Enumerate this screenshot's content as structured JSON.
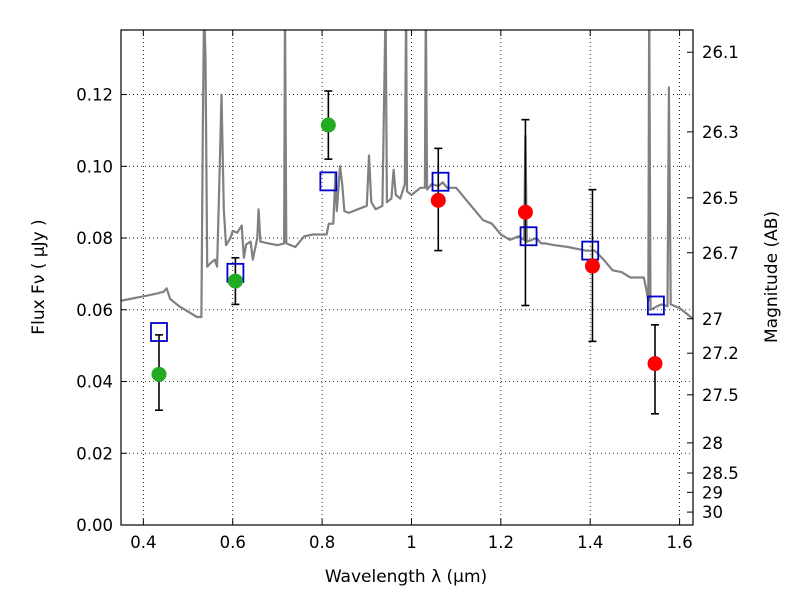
{
  "chart_data": {
    "type": "scatter",
    "xlabel": "Wavelength  λ (μm)",
    "ylabel": "Flux  Fν  ( μJy )",
    "y2label": "Magnitude (AB)",
    "xlim": [
      0.35,
      1.63
    ],
    "ylim": [
      0.0,
      0.138
    ],
    "grid": true,
    "x_ticks": [
      0.4,
      0.6,
      0.8,
      1.0,
      1.2,
      1.4,
      1.6
    ],
    "x_tick_labels": [
      "0.4",
      "0.6",
      "0.8",
      "1",
      "1.2",
      "1.4",
      "1.6"
    ],
    "y_ticks": [
      0.0,
      0.02,
      0.04,
      0.06,
      0.08,
      0.1,
      0.12
    ],
    "y_tick_labels": [
      "0.00",
      "0.02",
      "0.04",
      "0.06",
      "0.08",
      "0.10",
      "0.12"
    ],
    "mag_ticks": [
      {
        "label": "26.1",
        "flux": 0.1318
      },
      {
        "label": "26.3",
        "flux": 0.1096
      },
      {
        "label": "26.5",
        "flux": 0.0912
      },
      {
        "label": "26.7",
        "flux": 0.0759
      },
      {
        "label": "27",
        "flux": 0.0575
      },
      {
        "label": "27.2",
        "flux": 0.0479
      },
      {
        "label": "27.5",
        "flux": 0.0363
      },
      {
        "label": "28",
        "flux": 0.0229
      },
      {
        "label": "28.5",
        "flux": 0.0145
      },
      {
        "label": "29",
        "flux": 0.0091
      },
      {
        "label": "30",
        "flux": 0.0036
      }
    ],
    "colors": {
      "template": "#808080",
      "green_points": "#22aa22",
      "red_points": "#ff0000",
      "model_squares": "#0000cc",
      "errorbars": "#000000"
    },
    "observed_green": [
      {
        "x": 0.435,
        "y": 0.042,
        "yerr_low": 0.01,
        "yerr_high": 0.011
      },
      {
        "x": 0.606,
        "y": 0.068,
        "yerr_low": 0.0065,
        "yerr_high": 0.0065
      },
      {
        "x": 0.814,
        "y": 0.1115,
        "yerr_low": 0.0095,
        "yerr_high": 0.0095
      }
    ],
    "observed_red": [
      {
        "x": 1.06,
        "y": 0.0905,
        "yerr_low": 0.014,
        "yerr_high": 0.0145
      },
      {
        "x": 1.255,
        "y": 0.0872,
        "yerr_low": 0.026,
        "yerr_high": 0.0258
      },
      {
        "x": 1.405,
        "y": 0.0722,
        "yerr_low": 0.021,
        "yerr_high": 0.0213
      },
      {
        "x": 1.545,
        "y": 0.045,
        "yerr_low": 0.014,
        "yerr_high": 0.0108
      }
    ],
    "model_fluxes": [
      {
        "x": 0.435,
        "y": 0.0538
      },
      {
        "x": 0.606,
        "y": 0.0703
      },
      {
        "x": 0.814,
        "y": 0.0958
      },
      {
        "x": 1.065,
        "y": 0.0957
      },
      {
        "x": 1.262,
        "y": 0.0805
      },
      {
        "x": 1.4,
        "y": 0.0765
      },
      {
        "x": 1.547,
        "y": 0.0612
      }
    ],
    "template_spectrum": [
      [
        0.35,
        0.0625
      ],
      [
        0.37,
        0.063
      ],
      [
        0.39,
        0.0635
      ],
      [
        0.41,
        0.064
      ],
      [
        0.43,
        0.0645
      ],
      [
        0.445,
        0.065
      ],
      [
        0.452,
        0.066
      ],
      [
        0.46,
        0.063
      ],
      [
        0.48,
        0.061
      ],
      [
        0.5,
        0.0595
      ],
      [
        0.52,
        0.058
      ],
      [
        0.53,
        0.058
      ],
      [
        0.533,
        0.11
      ],
      [
        0.536,
        0.145
      ],
      [
        0.539,
        0.13
      ],
      [
        0.543,
        0.072
      ],
      [
        0.55,
        0.073
      ],
      [
        0.56,
        0.074
      ],
      [
        0.565,
        0.072
      ],
      [
        0.57,
        0.095
      ],
      [
        0.575,
        0.12
      ],
      [
        0.58,
        0.088
      ],
      [
        0.585,
        0.078
      ],
      [
        0.595,
        0.08
      ],
      [
        0.6,
        0.082
      ],
      [
        0.61,
        0.0815
      ],
      [
        0.62,
        0.0835
      ],
      [
        0.625,
        0.0745
      ],
      [
        0.63,
        0.0782
      ],
      [
        0.64,
        0.079
      ],
      [
        0.645,
        0.074
      ],
      [
        0.655,
        0.08
      ],
      [
        0.658,
        0.088
      ],
      [
        0.662,
        0.079
      ],
      [
        0.68,
        0.0785
      ],
      [
        0.7,
        0.078
      ],
      [
        0.715,
        0.0785
      ],
      [
        0.717,
        0.145
      ],
      [
        0.72,
        0.0785
      ],
      [
        0.74,
        0.0775
      ],
      [
        0.76,
        0.0805
      ],
      [
        0.78,
        0.081
      ],
      [
        0.8,
        0.081
      ],
      [
        0.81,
        0.081
      ],
      [
        0.815,
        0.084
      ],
      [
        0.825,
        0.084
      ],
      [
        0.83,
        0.098
      ],
      [
        0.833,
        0.0875
      ],
      [
        0.84,
        0.1
      ],
      [
        0.845,
        0.095
      ],
      [
        0.85,
        0.0875
      ],
      [
        0.86,
        0.087
      ],
      [
        0.88,
        0.088
      ],
      [
        0.9,
        0.089
      ],
      [
        0.905,
        0.103
      ],
      [
        0.91,
        0.09
      ],
      [
        0.92,
        0.088
      ],
      [
        0.935,
        0.089
      ],
      [
        0.942,
        0.145
      ],
      [
        0.945,
        0.09
      ],
      [
        0.955,
        0.091
      ],
      [
        0.96,
        0.099
      ],
      [
        0.965,
        0.092
      ],
      [
        0.975,
        0.091
      ],
      [
        0.985,
        0.095
      ],
      [
        0.988,
        0.145
      ],
      [
        0.99,
        0.093
      ],
      [
        1.0,
        0.092
      ],
      [
        1.02,
        0.094
      ],
      [
        1.03,
        0.094
      ],
      [
        1.032,
        0.145
      ],
      [
        1.035,
        0.0935
      ],
      [
        1.045,
        0.095
      ],
      [
        1.06,
        0.0945
      ],
      [
        1.07,
        0.0955
      ],
      [
        1.08,
        0.094
      ],
      [
        1.1,
        0.094
      ],
      [
        1.12,
        0.091
      ],
      [
        1.14,
        0.088
      ],
      [
        1.16,
        0.085
      ],
      [
        1.18,
        0.084
      ],
      [
        1.2,
        0.081
      ],
      [
        1.22,
        0.0795
      ],
      [
        1.24,
        0.0805
      ],
      [
        1.252,
        0.0795
      ],
      [
        1.255,
        0.1085
      ],
      [
        1.258,
        0.079
      ],
      [
        1.27,
        0.0795
      ],
      [
        1.28,
        0.08
      ],
      [
        1.29,
        0.0785
      ],
      [
        1.3,
        0.0785
      ],
      [
        1.32,
        0.078
      ],
      [
        1.35,
        0.0775
      ],
      [
        1.37,
        0.077
      ],
      [
        1.39,
        0.0765
      ],
      [
        1.41,
        0.0765
      ],
      [
        1.43,
        0.074
      ],
      [
        1.45,
        0.071
      ],
      [
        1.47,
        0.0705
      ],
      [
        1.49,
        0.069
      ],
      [
        1.52,
        0.069
      ],
      [
        1.525,
        0.066
      ],
      [
        1.53,
        0.0625
      ],
      [
        1.532,
        0.145
      ],
      [
        1.535,
        0.06
      ],
      [
        1.55,
        0.061
      ],
      [
        1.56,
        0.0615
      ],
      [
        1.573,
        0.061
      ],
      [
        1.576,
        0.122
      ],
      [
        1.58,
        0.0615
      ],
      [
        1.6,
        0.0605
      ],
      [
        1.63,
        0.0575
      ]
    ]
  }
}
